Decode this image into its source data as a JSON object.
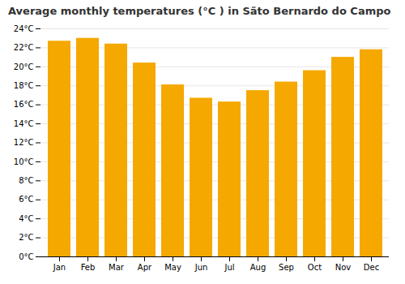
{
  "chart_data": {
    "type": "bar",
    "title": "Average monthly temperatures (°C ) in Sãto Bernardo do Campo",
    "categories": [
      "Jan",
      "Feb",
      "Mar",
      "Apr",
      "May",
      "Jun",
      "Jul",
      "Aug",
      "Sep",
      "Oct",
      "Nov",
      "Dec"
    ],
    "values": [
      22.7,
      23.0,
      22.4,
      20.4,
      18.1,
      16.7,
      16.3,
      17.5,
      18.4,
      19.6,
      21.0,
      21.8
    ],
    "color": "#F5A800",
    "ylim": [
      0,
      24
    ],
    "yticks": [
      {
        "value": 0,
        "label": "0°C"
      },
      {
        "value": 2,
        "label": "2°C"
      },
      {
        "value": 4,
        "label": "4°C"
      },
      {
        "value": 6,
        "label": "6°C"
      },
      {
        "value": 8,
        "label": "8°C"
      },
      {
        "value": 10,
        "label": "10°C"
      },
      {
        "value": 12,
        "label": "12°C"
      },
      {
        "value": 14,
        "label": "14°C"
      },
      {
        "value": 16,
        "label": "16°C"
      },
      {
        "value": 18,
        "label": "18°C"
      },
      {
        "value": 20,
        "label": "20°C"
      },
      {
        "value": 22,
        "label": "22°C"
      },
      {
        "value": 24,
        "label": "24°C"
      }
    ],
    "grid": true
  }
}
